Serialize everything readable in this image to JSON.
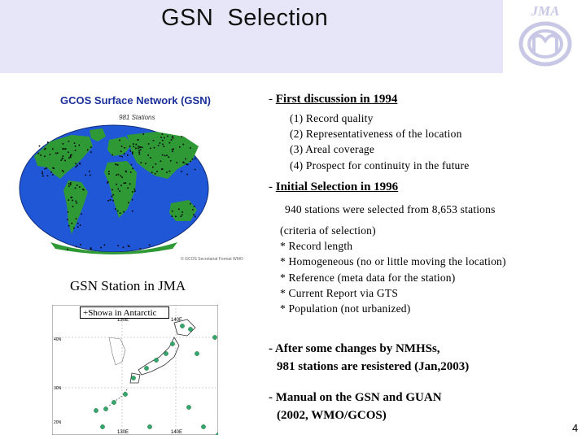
{
  "slide": {
    "title": "GSN  Selection",
    "logo_text": "JMA",
    "page_number": "4"
  },
  "map": {
    "title": "GCOS Surface Network (GSN)",
    "subtitle": "981 Stations",
    "credit": "© GCOS Secretariat Format WMO"
  },
  "jma": {
    "title": "GSN Station in JMA",
    "showa_label": "+Showa in Antarctic",
    "lon_labels": [
      "130E",
      "140E"
    ],
    "lat_labels": [
      "40N",
      "30N",
      "20N"
    ]
  },
  "content": {
    "first": {
      "dash": "- ",
      "heading": "First discussion in 1994",
      "items": [
        "(1) Record quality",
        "(2) Representativeness of the location",
        "(3) Areal coverage",
        "(4) Prospect for continuity in the future"
      ]
    },
    "initial": {
      "dash": "- ",
      "heading": "Initial Selection in 1996",
      "summary": "940 stations were selected from 8,653 stations",
      "criteria": [
        "(criteria of selection)",
        "* Record length",
        "* Homogeneous (no or little moving the location)",
        "* Reference (meta data for the station)",
        "* Current Report via GTS",
        "* Population (not urbanized)"
      ]
    },
    "after": {
      "line1": "- After some changes by NMHSs,",
      "line2": "981 stations are resistered (Jan,2003)"
    },
    "manual": {
      "line1": "- Manual on the GSN and GUAN",
      "line2": "(2002, WMO/GCOS)"
    }
  },
  "colors": {
    "header_band": "#e6e6f8",
    "ocean": "#1f57d6",
    "land": "#2f9a35",
    "station_dot_world": "#000000",
    "station_dot_jma": "#34a86a"
  }
}
